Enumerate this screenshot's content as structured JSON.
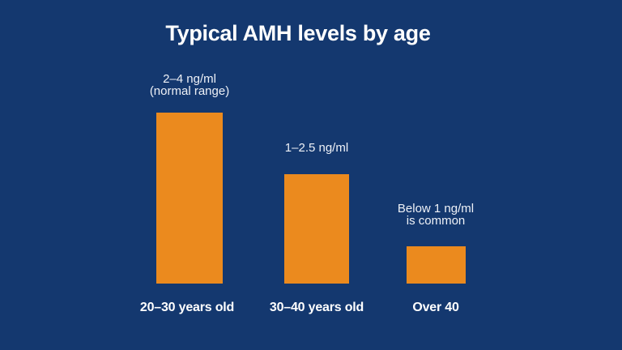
{
  "title": "Typical AMH levels by age",
  "colors": {
    "background": "#14386f",
    "bar": "#eb8a1e",
    "text": "#ffffff"
  },
  "chart_data": {
    "type": "bar",
    "title": "Typical AMH levels by age",
    "categories": [
      "20–30 years old",
      "30–40 years old",
      "Over 40"
    ],
    "values": [
      3.0,
      1.92,
      0.65
    ],
    "unit": "ng/ml",
    "ylabel": "",
    "xlabel": "",
    "ylim": [
      0,
      3.2
    ],
    "grid": false,
    "legend": false,
    "bar_color": "#eb8a1e",
    "background_color": "#14386f",
    "annotations": [
      {
        "lines": [
          "2–4 ng/ml",
          "(normal range)"
        ]
      },
      {
        "lines": [
          "1–2.5 ng/ml"
        ]
      },
      {
        "lines": [
          "Below 1 ng/ml",
          "is common"
        ]
      }
    ]
  }
}
